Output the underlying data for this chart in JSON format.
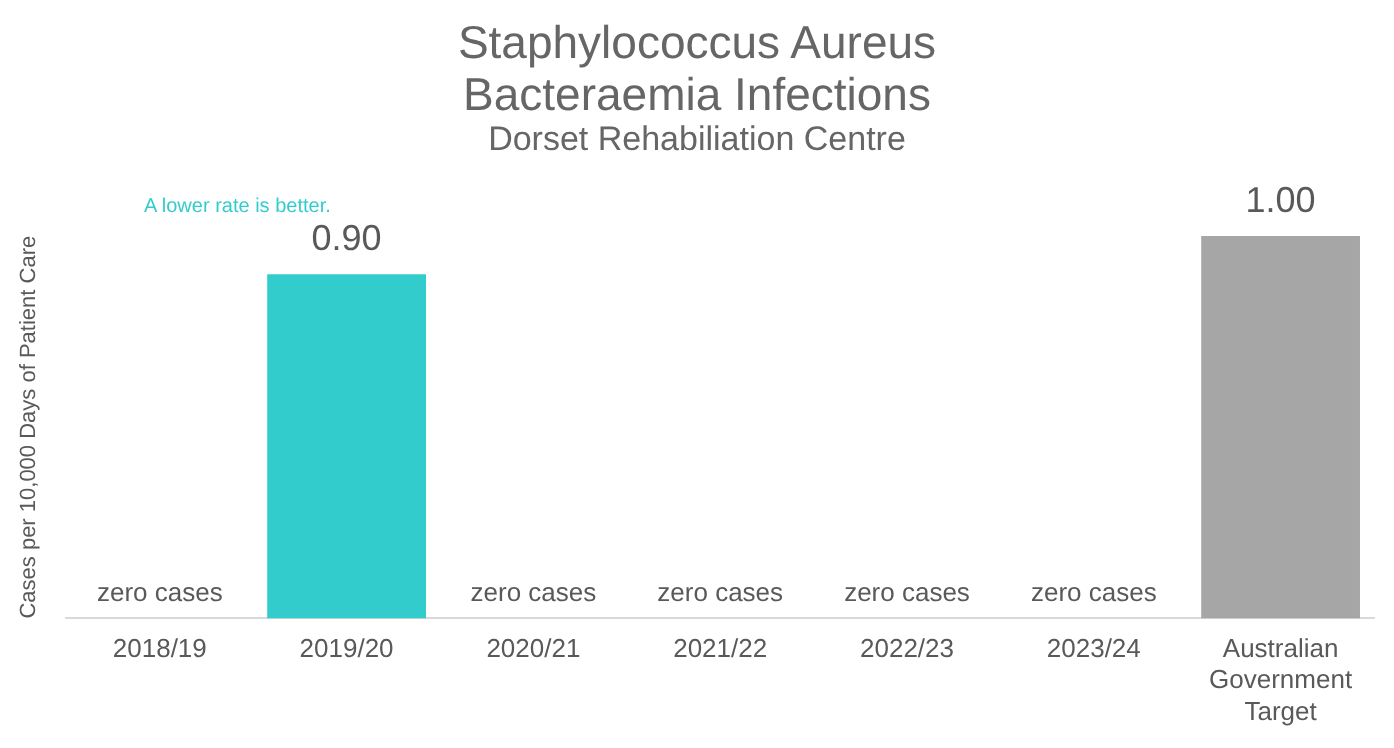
{
  "chart_data": {
    "type": "bar",
    "title": "Staphylococcus Aureus Bacteraemia Infections",
    "subtitle": "Dorset Rehabiliation Centre",
    "ylabel": "Cases per 10,000 Days of Patient Care",
    "annotations": [
      "A lower rate is better."
    ],
    "categories": [
      "2018/19",
      "2019/20",
      "2020/21",
      "2021/22",
      "2022/23",
      "2023/24",
      "Australian Government Target"
    ],
    "values": [
      0,
      0.9,
      0,
      0,
      0,
      0,
      1.0
    ],
    "colors": [
      "#33cccc",
      "#33cccc",
      "#33cccc",
      "#33cccc",
      "#33cccc",
      "#33cccc",
      "#a6a6a6"
    ],
    "value_labels": [
      "zero cases",
      "0.90",
      "zero cases",
      "zero cases",
      "zero cases",
      "zero cases",
      "1.00"
    ],
    "legend": false,
    "grid": false
  }
}
